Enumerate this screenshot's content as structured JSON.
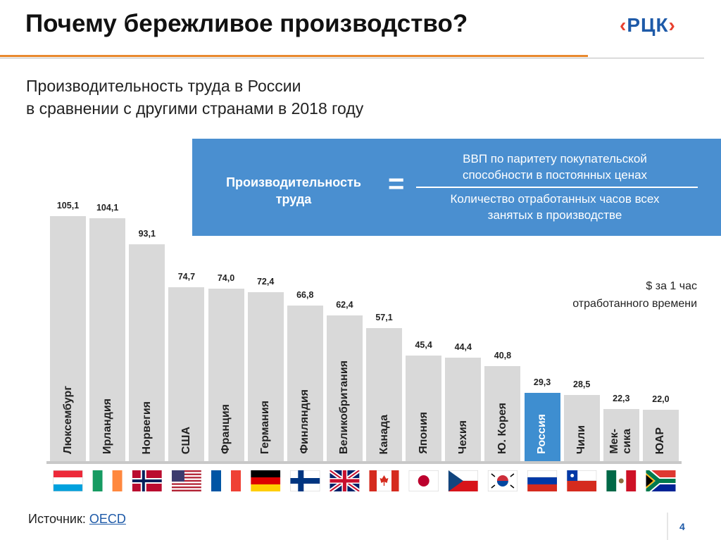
{
  "header": {
    "title": "Почему бережливое производство?",
    "logo": "РЦК"
  },
  "formula": {
    "left": "Производительность\nтруда",
    "symbol": "=",
    "numerator": "ВВП по паритету покупательской\nспособности в постоянных ценах",
    "denominator": "Количество отработанных часов всех\nзанятых в производстве"
  },
  "chart_data": {
    "type": "bar",
    "title": "Производительность труда в России\nв сравнении с другими странами в 2018 году",
    "units": "$ за 1 час\nотработанного времени",
    "categories": [
      "Люксембург",
      "Ирландия",
      "Норвегия",
      "США",
      "Франция",
      "Германия",
      "Финляндия",
      "Великобритания",
      "Канада",
      "Япония",
      "Чехия",
      "Ю. Корея",
      "Россия",
      "Чили",
      "Мек-\nсика",
      "ЮАР"
    ],
    "values": [
      105.1,
      104.1,
      93.1,
      74.7,
      74.0,
      72.4,
      66.8,
      62.4,
      57.1,
      45.4,
      44.4,
      40.8,
      29.3,
      28.5,
      22.3,
      22.0
    ],
    "value_labels": [
      "105,1",
      "104,1",
      "93,1",
      "74,7",
      "74,0",
      "72,4",
      "66,8",
      "62,4",
      "57,1",
      "45,4",
      "44,4",
      "40,8",
      "29,3",
      "28,5",
      "22,3",
      "22,0"
    ],
    "colors": [
      "#d9d9d9",
      "#d9d9d9",
      "#d9d9d9",
      "#d9d9d9",
      "#d9d9d9",
      "#d9d9d9",
      "#d9d9d9",
      "#d9d9d9",
      "#d9d9d9",
      "#d9d9d9",
      "#d9d9d9",
      "#d9d9d9",
      "#3e8ed0",
      "#d9d9d9",
      "#d9d9d9",
      "#d9d9d9"
    ]
  },
  "source": {
    "label": "Источник:",
    "link": "OECD"
  },
  "page_number": "4"
}
